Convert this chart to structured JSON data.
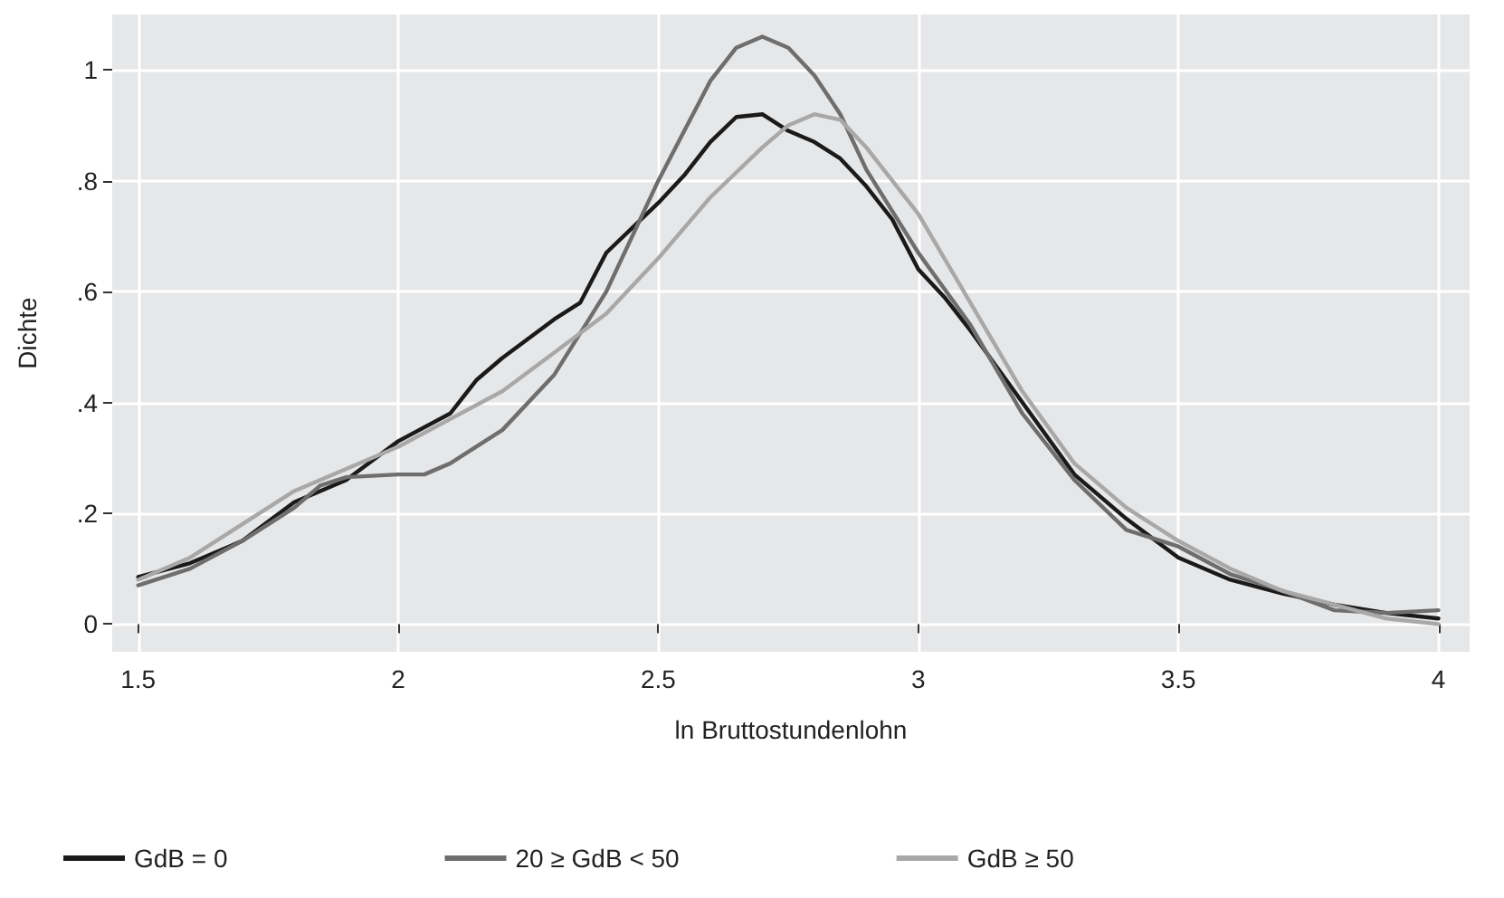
{
  "chart_data": {
    "type": "line",
    "xlabel": "ln Bruttostundenlohn",
    "ylabel": "Dichte",
    "xlim": [
      1.45,
      4.06
    ],
    "ylim": [
      -0.05,
      1.1
    ],
    "xticks": [
      1.5,
      2,
      2.5,
      3,
      3.5,
      4
    ],
    "yticks": [
      0,
      {
        "value": 0.2,
        "label": ".2"
      },
      {
        "value": 0.4,
        "label": ".4"
      },
      {
        "value": 0.6,
        "label": ".6"
      },
      {
        "value": 0.8,
        "label": ".8"
      },
      1
    ],
    "grid": true,
    "legend": "bottom",
    "marker": "none",
    "line_style": "solid",
    "series": [
      {
        "name": "GdB = 0",
        "color": "#1a1a1a",
        "x": [
          1.5,
          1.6,
          1.7,
          1.8,
          1.9,
          2.0,
          2.1,
          2.15,
          2.2,
          2.3,
          2.35,
          2.4,
          2.5,
          2.55,
          2.6,
          2.65,
          2.7,
          2.75,
          2.8,
          2.85,
          2.9,
          2.95,
          3.0,
          3.05,
          3.1,
          3.2,
          3.3,
          3.4,
          3.5,
          3.6,
          3.7,
          3.8,
          3.9,
          4.0
        ],
        "values": [
          0.085,
          0.11,
          0.15,
          0.22,
          0.26,
          0.33,
          0.38,
          0.44,
          0.48,
          0.55,
          0.58,
          0.67,
          0.76,
          0.81,
          0.87,
          0.915,
          0.92,
          0.89,
          0.87,
          0.84,
          0.79,
          0.73,
          0.64,
          0.59,
          0.53,
          0.4,
          0.27,
          0.19,
          0.12,
          0.08,
          0.055,
          0.035,
          0.02,
          0.01
        ]
      },
      {
        "name": "20 ≥ GdB < 50",
        "color": "#6e6e6e",
        "x": [
          1.5,
          1.6,
          1.7,
          1.8,
          1.85,
          1.9,
          2.0,
          2.05,
          2.1,
          2.2,
          2.3,
          2.4,
          2.5,
          2.6,
          2.65,
          2.7,
          2.75,
          2.8,
          2.85,
          2.9,
          3.0,
          3.1,
          3.2,
          3.3,
          3.4,
          3.5,
          3.6,
          3.7,
          3.8,
          3.9,
          4.0
        ],
        "values": [
          0.07,
          0.1,
          0.15,
          0.21,
          0.25,
          0.265,
          0.27,
          0.27,
          0.29,
          0.35,
          0.45,
          0.6,
          0.8,
          0.98,
          1.04,
          1.06,
          1.04,
          0.99,
          0.92,
          0.82,
          0.67,
          0.54,
          0.38,
          0.26,
          0.17,
          0.14,
          0.09,
          0.06,
          0.025,
          0.02,
          0.025
        ]
      },
      {
        "name": "GdB ≥ 50",
        "color": "#a8a8a8",
        "x": [
          1.5,
          1.6,
          1.7,
          1.8,
          1.9,
          2.0,
          2.1,
          2.2,
          2.3,
          2.4,
          2.5,
          2.6,
          2.7,
          2.75,
          2.8,
          2.85,
          2.9,
          3.0,
          3.1,
          3.2,
          3.3,
          3.4,
          3.5,
          3.6,
          3.7,
          3.8,
          3.9,
          4.0
        ],
        "values": [
          0.08,
          0.12,
          0.18,
          0.24,
          0.28,
          0.32,
          0.37,
          0.42,
          0.49,
          0.56,
          0.66,
          0.77,
          0.86,
          0.9,
          0.92,
          0.91,
          0.86,
          0.74,
          0.58,
          0.42,
          0.29,
          0.21,
          0.15,
          0.1,
          0.06,
          0.035,
          0.01,
          0
        ]
      }
    ]
  }
}
